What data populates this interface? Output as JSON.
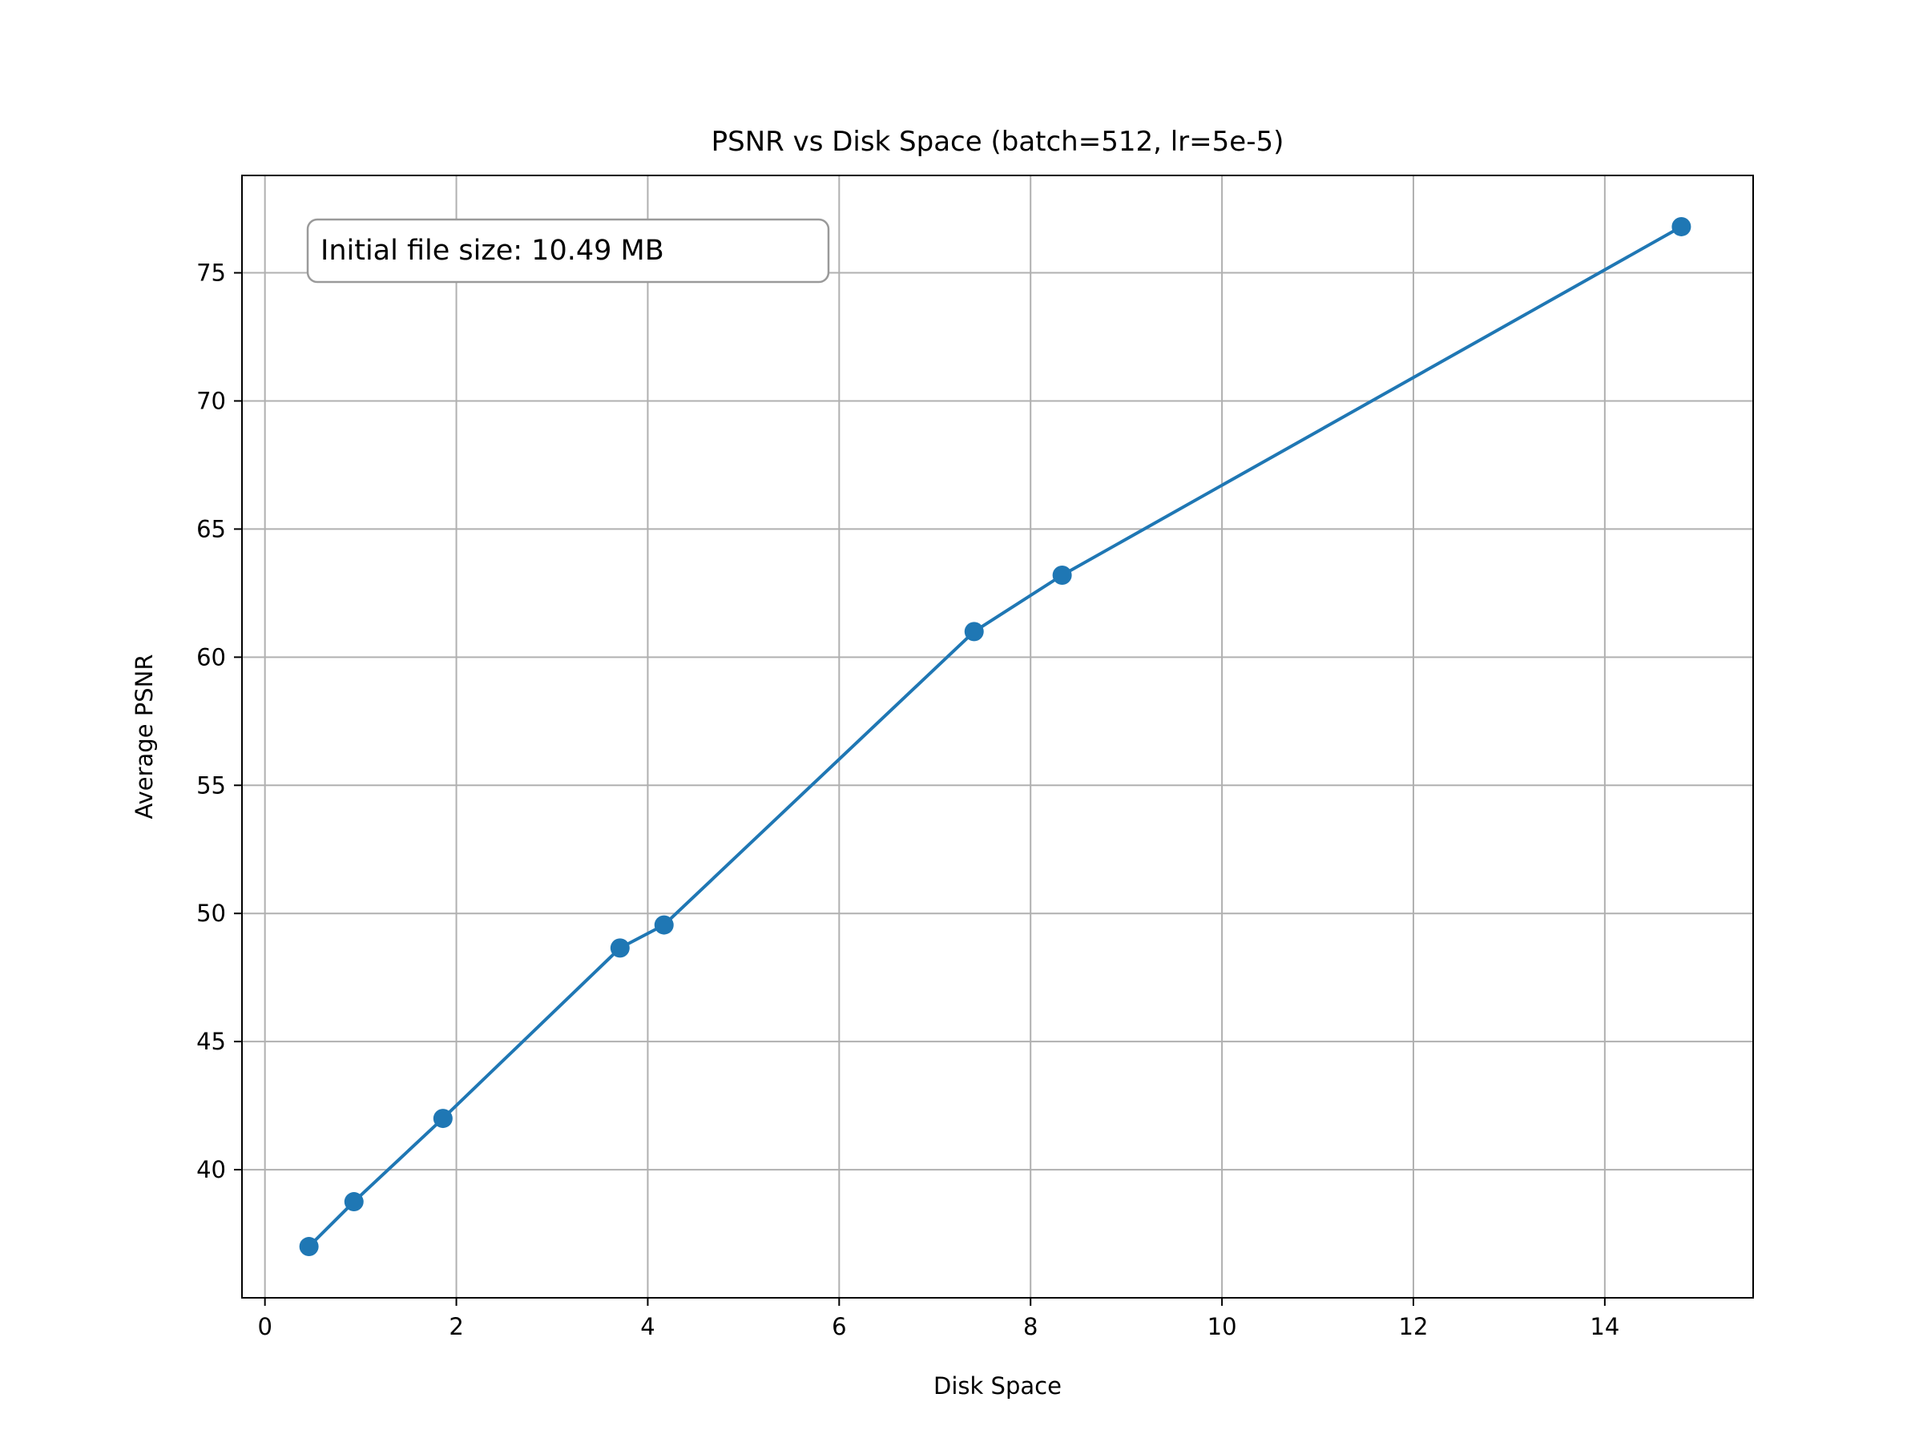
{
  "chart_data": {
    "type": "line",
    "title": "PSNR vs Disk Space (batch=512, lr=5e-5)",
    "xlabel": "Disk Space",
    "ylabel": "Average PSNR",
    "annotation": "Initial file size: 10.49 MB",
    "xlim": [
      -0.24,
      15.55
    ],
    "ylim": [
      35.0,
      78.8
    ],
    "x_ticks": [
      0,
      2,
      4,
      6,
      8,
      10,
      12,
      14
    ],
    "y_ticks": [
      40,
      45,
      50,
      55,
      60,
      65,
      70,
      75
    ],
    "grid": true,
    "series": [
      {
        "color": "#1f77b4",
        "marker": "circle",
        "x": [
          0.46,
          0.93,
          1.86,
          3.71,
          4.17,
          7.41,
          8.33,
          14.8
        ],
        "y": [
          37.0,
          38.75,
          42.0,
          48.65,
          49.55,
          61.0,
          63.2,
          76.8
        ]
      }
    ]
  }
}
